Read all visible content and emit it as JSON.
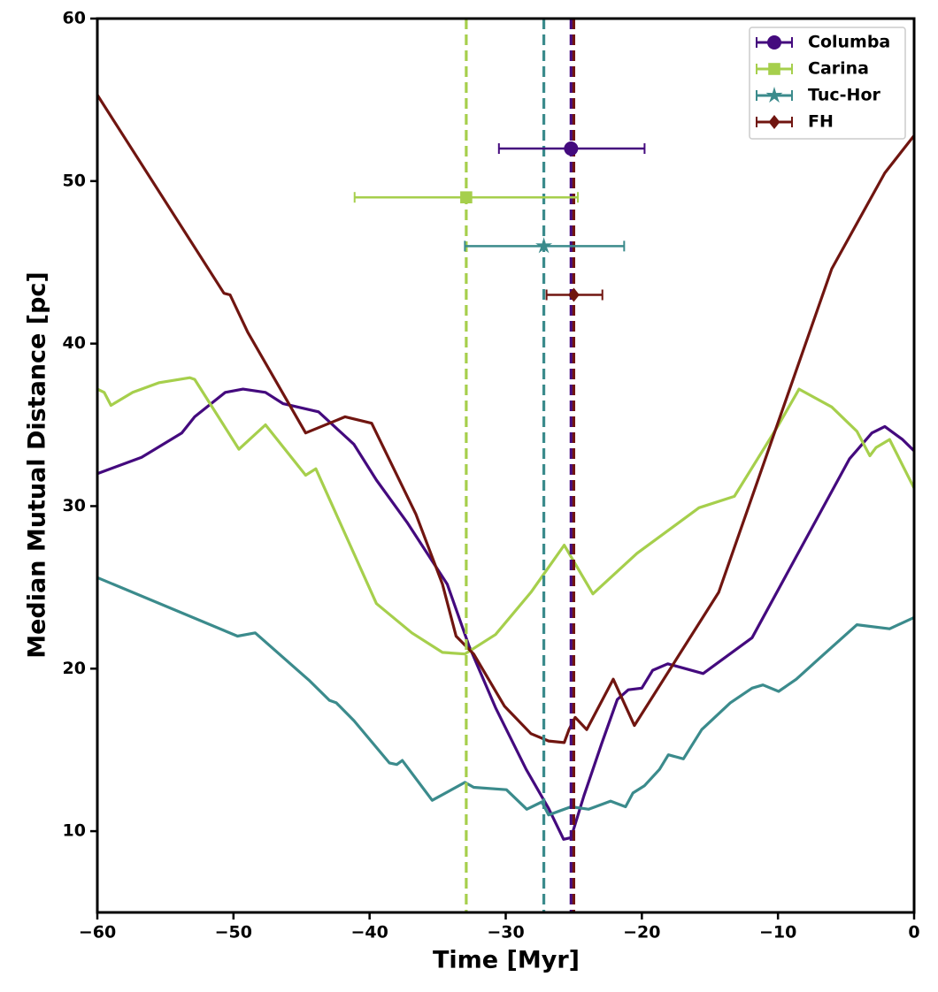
{
  "chart_data": {
    "type": "line",
    "xlabel": "Time [Myr]",
    "ylabel": "Median Mutual Distance [pc]",
    "xlim": [
      -60,
      0
    ],
    "ylim": [
      5,
      60
    ],
    "xticks": [
      {
        "value": -60,
        "label": "−60"
      },
      {
        "value": -50,
        "label": "−50"
      },
      {
        "value": -40,
        "label": "−40"
      },
      {
        "value": -30,
        "label": "−30"
      },
      {
        "value": -20,
        "label": "−20"
      },
      {
        "value": -10,
        "label": "−10"
      },
      0
    ],
    "yticks": [
      10,
      20,
      30,
      40,
      50,
      60
    ],
    "grid": false,
    "legend": "upper right",
    "series": [
      {
        "name": "Columba",
        "color": "#440a7e",
        "marker": "circle",
        "age": -25.2,
        "age_range": [
          -30.5,
          -19.8
        ],
        "marker_y": 52,
        "x": [
          -60,
          -56.75,
          -53.8,
          -52.85,
          -50.6,
          -49.3,
          -47.65,
          -46.35,
          -43.75,
          -41.15,
          -39.5,
          -37.25,
          -34.3,
          -32.7,
          -30.75,
          -28.5,
          -26.85,
          -25.75,
          -25.2,
          -24.25,
          -22.95,
          -21.8,
          -21.0,
          -20.0,
          -19.2,
          -18.1,
          -15.5,
          -11.9,
          -8.65,
          -4.75,
          -3.1,
          -2.15,
          -0.85,
          0
        ],
        "values": [
          32.0,
          33.0,
          34.5,
          35.5,
          37.0,
          37.2,
          37.0,
          36.3,
          35.8,
          33.8,
          31.6,
          29.0,
          25.2,
          21.4,
          17.6,
          13.8,
          11.4,
          9.5,
          9.6,
          12.2,
          15.4,
          18.1,
          18.7,
          18.8,
          19.9,
          20.3,
          19.7,
          21.9,
          26.9,
          32.9,
          34.5,
          34.9,
          34.1,
          33.4
        ]
      },
      {
        "name": "Carina",
        "color": "#a6cf4c",
        "marker": "square",
        "age": -32.9,
        "age_range": [
          -41.1,
          -24.7
        ],
        "marker_y": 49,
        "x": [
          -60,
          -59.5,
          -59.0,
          -57.4,
          -55.45,
          -53.2,
          -52.85,
          -49.6,
          -47.65,
          -44.7,
          -43.95,
          -39.5,
          -36.9,
          -34.65,
          -33.0,
          -30.75,
          -28.15,
          -25.7,
          -23.6,
          -20.35,
          -15.8,
          -13.2,
          -9.95,
          -8.45,
          -6.05,
          -4.2,
          -3.25,
          -2.8,
          -1.8,
          0
        ],
        "values": [
          37.2,
          37.0,
          36.2,
          37.0,
          37.6,
          37.9,
          37.8,
          33.5,
          35.0,
          31.9,
          32.3,
          24.0,
          22.2,
          21.0,
          20.9,
          22.1,
          24.7,
          27.6,
          24.6,
          27.1,
          29.9,
          30.6,
          35.0,
          37.2,
          36.1,
          34.6,
          33.1,
          33.6,
          34.1,
          31.1
        ]
      },
      {
        "name": "Tuc-Hor",
        "color": "#3b8b8c",
        "marker": "star",
        "age": -27.2,
        "age_range": [
          -33.0,
          -21.3
        ],
        "marker_y": 46,
        "x": [
          -60,
          -49.7,
          -48.4,
          -44.4,
          -42.95,
          -42.45,
          -41.15,
          -38.55,
          -38.0,
          -37.6,
          -35.4,
          -33.0,
          -32.35,
          -29.95,
          -28.45,
          -27.35,
          -26.85,
          -25.2,
          -23.9,
          -22.3,
          -21.2,
          -20.65,
          -19.8,
          -18.7,
          -18.05,
          -16.95,
          -15.6,
          -13.5,
          -11.9,
          -11.1,
          -9.95,
          -8.65,
          -7.0,
          -4.2,
          -1.8,
          0
        ],
        "values": [
          25.6,
          22.0,
          22.2,
          19.25,
          18.05,
          17.9,
          16.8,
          14.2,
          14.1,
          14.35,
          11.9,
          13.0,
          12.7,
          12.55,
          11.35,
          11.8,
          11.0,
          11.5,
          11.35,
          11.85,
          11.5,
          12.35,
          12.8,
          13.8,
          14.7,
          14.45,
          16.25,
          17.9,
          18.8,
          19.0,
          18.6,
          19.35,
          20.6,
          22.7,
          22.45,
          23.15
        ]
      },
      {
        "name": "FH",
        "color": "#701510",
        "marker": "diamond",
        "age": -25.0,
        "age_range": [
          -27.0,
          -22.9
        ],
        "marker_y": 43,
        "x": [
          -60,
          -50.7,
          -50.25,
          -48.95,
          -44.7,
          -41.8,
          -39.85,
          -36.6,
          -34.65,
          -33.65,
          -32.35,
          -30.1,
          -28.15,
          -26.85,
          -25.7,
          -25.35,
          -24.9,
          -24.05,
          -22.1,
          -20.55,
          -14.35,
          -6.05,
          -2.15,
          0
        ],
        "values": [
          55.3,
          43.1,
          43.0,
          40.7,
          34.5,
          35.5,
          35.1,
          29.5,
          25.2,
          22.0,
          20.9,
          17.7,
          16.0,
          15.55,
          15.45,
          16.25,
          17.0,
          16.25,
          19.35,
          16.5,
          24.7,
          44.6,
          50.5,
          52.8
        ]
      }
    ]
  }
}
